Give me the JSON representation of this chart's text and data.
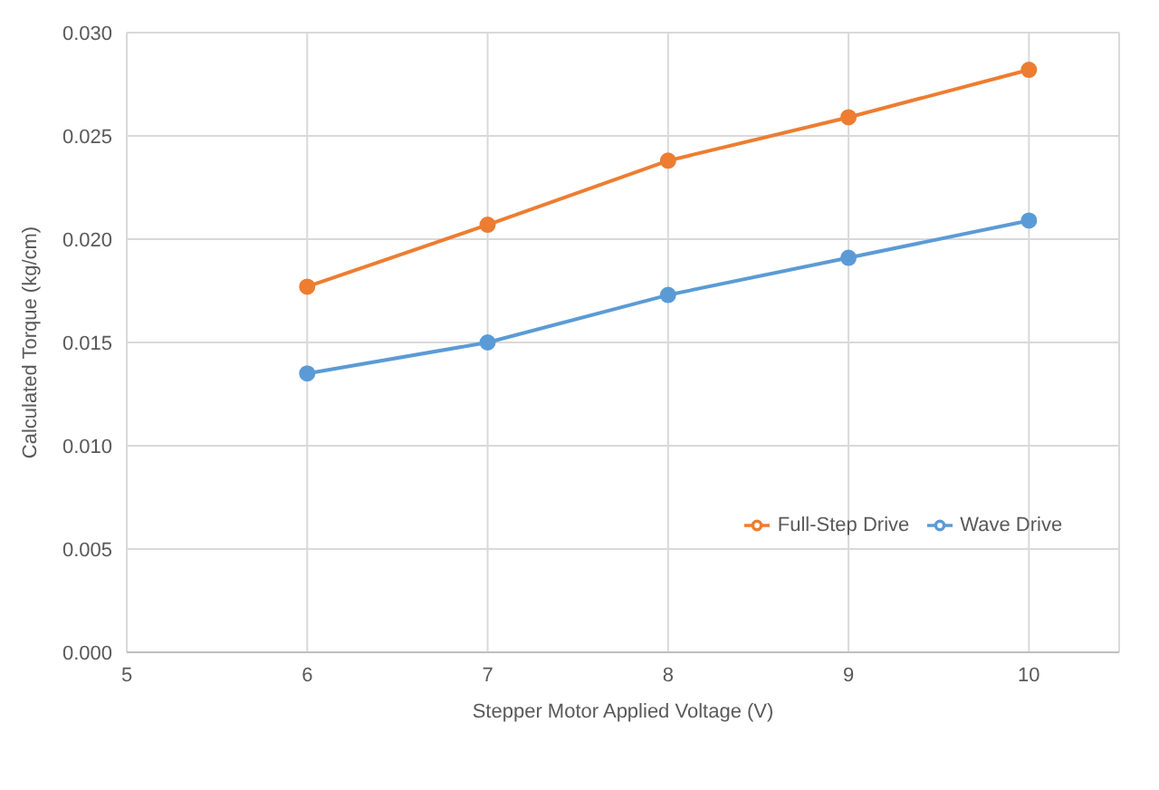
{
  "chart_data": {
    "type": "line",
    "xlabel": "Stepper  Motor Applied Voltage (V)",
    "ylabel": "Calculated Torque (kg/cm)",
    "x": [
      6,
      7,
      8,
      9,
      10
    ],
    "series": [
      {
        "name": "Wave Drive",
        "color": "#5b9bd5",
        "values": [
          0.0135,
          0.015,
          0.0173,
          0.0191,
          0.0209
        ]
      },
      {
        "name": "Full-Step Drive",
        "color": "#ed7d31",
        "values": [
          0.0177,
          0.0207,
          0.0238,
          0.0259,
          0.0282
        ]
      }
    ],
    "xlim": [
      5,
      10.5
    ],
    "xticks": [
      5,
      6,
      7,
      8,
      9,
      10
    ],
    "ylim": [
      0,
      0.03
    ],
    "yticks": [
      {
        "value": 0,
        "label": "0.000"
      },
      {
        "value": 0.005,
        "label": "0.005"
      },
      {
        "value": 0.01,
        "label": "0.010"
      },
      {
        "value": 0.015,
        "label": "0.015"
      },
      {
        "value": 0.02,
        "label": "0.020"
      },
      {
        "value": 0.025,
        "label": "0.025"
      },
      {
        "value": 0.03,
        "label": "0.030"
      }
    ],
    "grid": true,
    "legend": "center",
    "marker": "circle",
    "line_style": "solid"
  }
}
